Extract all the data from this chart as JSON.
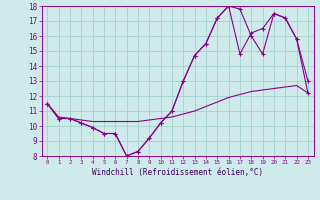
{
  "xlabel": "Windchill (Refroidissement éolien,°C)",
  "hours": [
    0,
    1,
    2,
    3,
    4,
    5,
    6,
    7,
    8,
    9,
    10,
    11,
    12,
    13,
    14,
    15,
    16,
    17,
    18,
    19,
    20,
    21,
    22,
    23
  ],
  "temp": [
    11.5,
    10.5,
    10.5,
    10.2,
    9.9,
    9.5,
    9.5,
    8.0,
    8.3,
    9.2,
    10.2,
    11.0,
    13.0,
    14.7,
    15.5,
    17.2,
    18.0,
    17.8,
    16.0,
    14.8,
    17.5,
    17.2,
    15.8,
    13.0
  ],
  "windchill": [
    11.5,
    10.5,
    10.5,
    10.2,
    9.9,
    9.5,
    9.5,
    8.0,
    8.3,
    9.2,
    10.2,
    11.0,
    13.0,
    14.7,
    15.5,
    17.2,
    18.0,
    14.8,
    16.2,
    16.5,
    17.5,
    17.2,
    15.8,
    12.2
  ],
  "smooth": [
    11.5,
    10.6,
    10.5,
    10.4,
    10.3,
    10.3,
    10.3,
    10.3,
    10.3,
    10.4,
    10.5,
    10.6,
    10.8,
    11.0,
    11.3,
    11.6,
    11.9,
    12.1,
    12.3,
    12.4,
    12.5,
    12.6,
    12.7,
    12.2
  ],
  "line_color": "#8B008B",
  "bg_color": "#ceeaea",
  "grid_color": "#aad4d4",
  "ylim": [
    8,
    18
  ],
  "yticks": [
    8,
    9,
    10,
    11,
    12,
    13,
    14,
    15,
    16,
    17,
    18
  ]
}
